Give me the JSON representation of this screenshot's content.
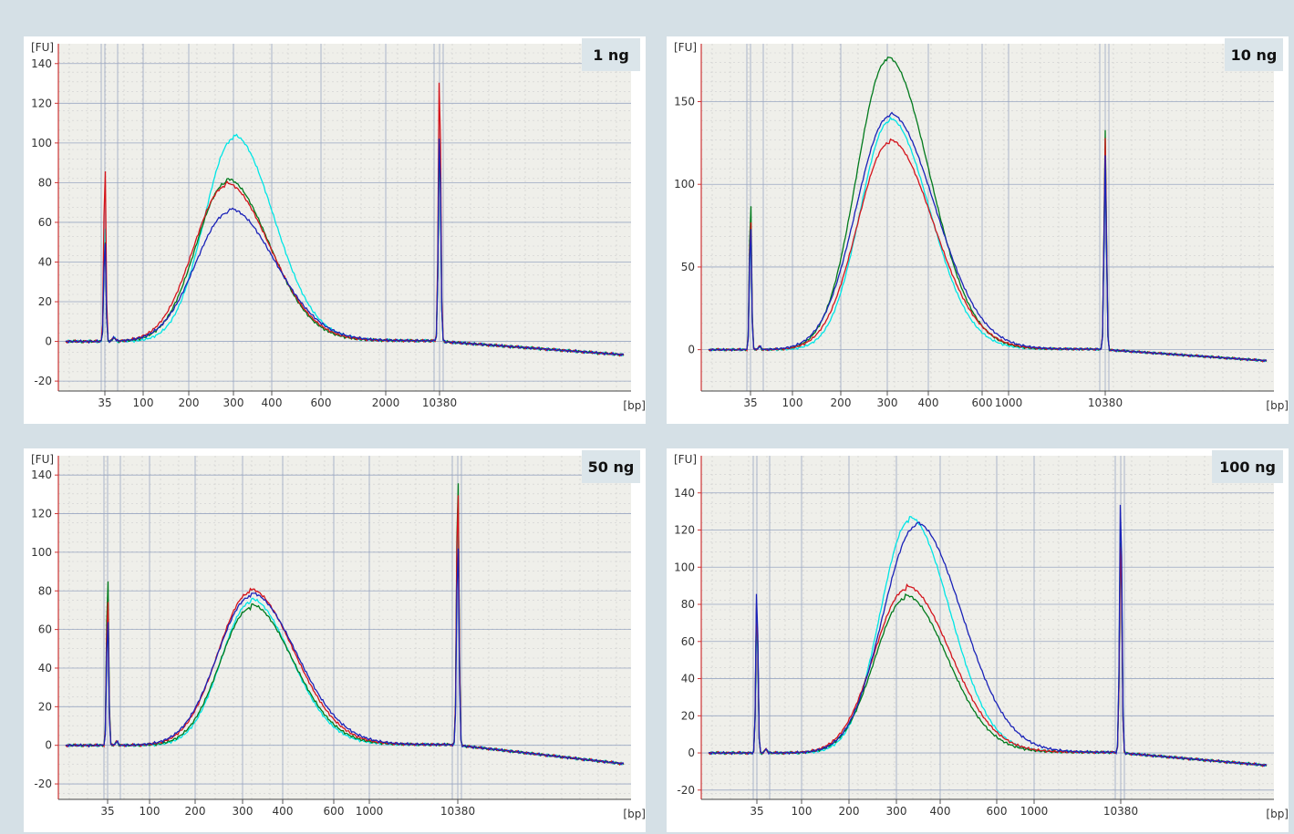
{
  "colors": {
    "page_bg": "#d5e0e6",
    "plot_bg": "#efefea",
    "axis": "#cc3333",
    "badge_bg": "#dbe5ea",
    "series": [
      "#00e5e5",
      "#007a1c",
      "#d4141c",
      "#1a22b8"
    ]
  },
  "chart_data": [
    {
      "type": "line",
      "label": "1 ng",
      "ylabel": "[FU]",
      "xlabel": "[bp]",
      "ylim": [
        -25,
        150
      ],
      "yticks": [
        -20,
        0,
        20,
        40,
        60,
        80,
        100,
        120,
        140
      ],
      "xtick_labels": [
        "35",
        "100",
        "200",
        "300",
        "400",
        "600",
        "2000",
        "10380"
      ],
      "baseline_end": -7,
      "marker_peaks": {
        "lower": [
          62,
          55,
          94,
          55
        ],
        "upper": [
          110,
          108,
          140,
          110
        ]
      },
      "series": [
        {
          "peak": 102,
          "center": 300
        },
        {
          "peak": 80,
          "center": 285
        },
        {
          "peak": 78,
          "center": 282
        },
        {
          "peak": 65,
          "center": 290
        }
      ]
    },
    {
      "type": "line",
      "label": "10 ng",
      "ylabel": "[FU]",
      "xlabel": "[bp]",
      "ylim": [
        -25,
        185
      ],
      "yticks": [
        0,
        50,
        100,
        150
      ],
      "xtick_labels": [
        "35",
        "100",
        "200",
        "300",
        "400",
        "600",
        "1000",
        "10380"
      ],
      "baseline_end": -7,
      "marker_peaks": {
        "lower": [
          78,
          96,
          85,
          80
        ],
        "upper": [
          120,
          133,
          128,
          118
        ]
      },
      "series": [
        {
          "peak": 138,
          "center": 305
        },
        {
          "peak": 175,
          "center": 300
        },
        {
          "peak": 125,
          "center": 305
        },
        {
          "peak": 141,
          "center": 305
        }
      ]
    },
    {
      "type": "line",
      "label": "50 ng",
      "ylabel": "[FU]",
      "xlabel": "[bp]",
      "ylim": [
        -28,
        150
      ],
      "yticks": [
        -20,
        0,
        20,
        40,
        60,
        80,
        100,
        120,
        140
      ],
      "xtick_labels": [
        "35",
        "100",
        "200",
        "300",
        "400",
        "600",
        "1000",
        "10380"
      ],
      "baseline_end": -10,
      "marker_peaks": {
        "lower": [
          80,
          94,
          82,
          70
        ],
        "upper": [
          130,
          146,
          140,
          110
        ]
      },
      "series": [
        {
          "peak": 74,
          "center": 320
        },
        {
          "peak": 71,
          "center": 320
        },
        {
          "peak": 79,
          "center": 318
        },
        {
          "peak": 77,
          "center": 320
        }
      ]
    },
    {
      "type": "line",
      "label": "100 ng",
      "ylabel": "[FU]",
      "xlabel": "[bp]",
      "ylim": [
        -25,
        160
      ],
      "yticks": [
        -20,
        0,
        20,
        40,
        60,
        80,
        100,
        120,
        140
      ],
      "xtick_labels": [
        "35",
        "100",
        "200",
        "300",
        "400",
        "600",
        "1000",
        "10380"
      ],
      "baseline_end": -7,
      "marker_peaks": {
        "lower": [
          80,
          86,
          88,
          94
        ],
        "upper": [
          130,
          122,
          120,
          144
        ]
      },
      "series": [
        {
          "peak": 125,
          "center": 330
        },
        {
          "peak": 83,
          "center": 320
        },
        {
          "peak": 88,
          "center": 322
        },
        {
          "peak": 122,
          "center": 345
        }
      ]
    }
  ]
}
